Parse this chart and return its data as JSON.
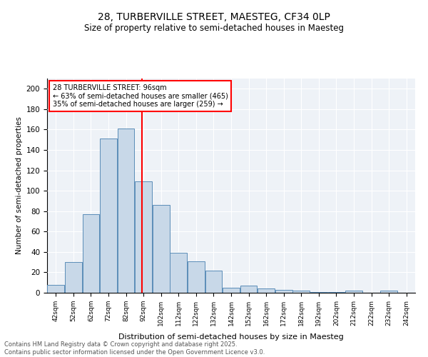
{
  "title1": "28, TURBERVILLE STREET, MAESTEG, CF34 0LP",
  "title2": "Size of property relative to semi-detached houses in Maesteg",
  "xlabel": "Distribution of semi-detached houses by size in Maesteg",
  "ylabel": "Number of semi-detached properties",
  "bin_labels": [
    "42sqm",
    "52sqm",
    "62sqm",
    "72sqm",
    "82sqm",
    "92sqm",
    "102sqm",
    "112sqm",
    "122sqm",
    "132sqm",
    "142sqm",
    "152sqm",
    "162sqm",
    "172sqm",
    "182sqm",
    "192sqm",
    "202sqm",
    "212sqm",
    "222sqm",
    "232sqm",
    "242sqm"
  ],
  "bin_edges": [
    42,
    52,
    62,
    72,
    82,
    92,
    102,
    112,
    122,
    132,
    142,
    152,
    162,
    172,
    182,
    192,
    202,
    212,
    222,
    232,
    242
  ],
  "counts": [
    8,
    30,
    77,
    151,
    161,
    109,
    86,
    39,
    31,
    22,
    5,
    7,
    4,
    3,
    2,
    1,
    1,
    2,
    0,
    2
  ],
  "bar_color": "#c8d8e8",
  "bar_edge_color": "#5b8db8",
  "property_size": 96,
  "annotation_title": "28 TURBERVILLE STREET: 96sqm",
  "annotation_line1": "← 63% of semi-detached houses are smaller (465)",
  "annotation_line2": "35% of semi-detached houses are larger (259) →",
  "vline_color": "red",
  "annotation_box_edge": "red",
  "footer_line1": "Contains HM Land Registry data © Crown copyright and database right 2025.",
  "footer_line2": "Contains public sector information licensed under the Open Government Licence v3.0.",
  "ylim": [
    0,
    210
  ],
  "yticks": [
    0,
    20,
    40,
    60,
    80,
    100,
    120,
    140,
    160,
    180,
    200
  ],
  "background_color": "#eef2f7"
}
